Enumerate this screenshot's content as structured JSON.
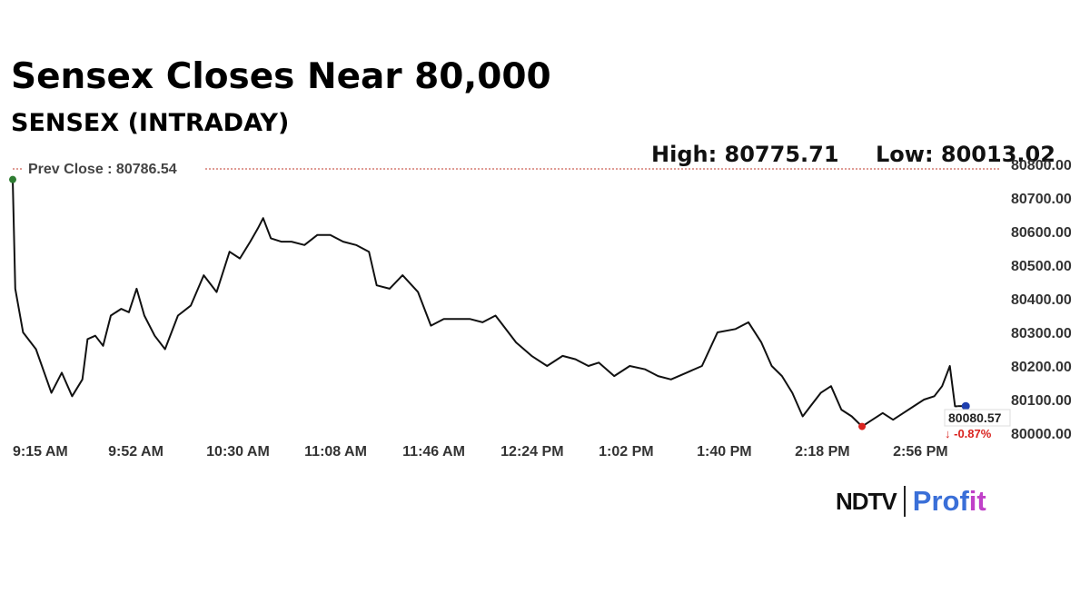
{
  "header": {
    "title": "Sensex Closes Near 80,000",
    "subtitle": "SENSEX (INTRADAY)",
    "high_text": "High: 80775.71",
    "low_text": "Low: 80013.02"
  },
  "chart_data": {
    "type": "line",
    "title": "SENSEX (INTRADAY)",
    "xlabel": "",
    "ylabel": "",
    "ylim": [
      80000,
      80800
    ],
    "yticks": [
      80000,
      80100,
      80200,
      80300,
      80400,
      80500,
      80600,
      80700,
      80800
    ],
    "ytick_labels": [
      "80000.00",
      "80100.00",
      "80200.00",
      "80300.00",
      "80400.00",
      "80500.00",
      "80600.00",
      "80700.00",
      "80800.00"
    ],
    "xticks": [
      "9:15 AM",
      "9:52 AM",
      "10:30 AM",
      "11:08 AM",
      "11:46 AM",
      "12:24 PM",
      "1:02 PM",
      "1:40 PM",
      "2:18 PM",
      "2:56 PM"
    ],
    "prev_close": {
      "label": "Prev Close : 80786.54",
      "value": 80786.54
    },
    "high": 80775.71,
    "low": 80013.02,
    "last": {
      "value_label": "80080.57",
      "change_label": "↓ -0.87%",
      "value": 80080.57
    },
    "grid": false,
    "series": [
      {
        "x": [
          "9:15 AM",
          "9:16 AM",
          "9:19 AM",
          "9:24 AM",
          "9:30 AM",
          "9:34 AM",
          "9:38 AM",
          "9:42 AM",
          "9:44 AM",
          "9:47 AM",
          "9:50 AM",
          "9:53 AM",
          "9:57 AM",
          "10:00 AM",
          "10:03 AM",
          "10:06 AM",
          "10:10 AM",
          "10:14 AM",
          "10:19 AM",
          "10:24 AM",
          "10:29 AM",
          "10:34 AM",
          "10:39 AM",
          "10:43 AM",
          "10:47 AM",
          "10:50 AM",
          "10:52 AM",
          "10:55 AM",
          "10:59 AM",
          "11:03 AM",
          "11:08 AM",
          "11:13 AM",
          "11:18 AM",
          "11:23 AM",
          "11:28 AM",
          "11:33 AM",
          "11:36 AM",
          "11:41 AM",
          "11:46 AM",
          "11:52 AM",
          "11:57 AM",
          "12:02 PM",
          "12:07 PM",
          "12:12 PM",
          "12:17 PM",
          "12:22 PM",
          "12:24 PM",
          "12:30 PM",
          "12:36 PM",
          "12:42 PM",
          "12:48 PM",
          "12:53 PM",
          "12:58 PM",
          "1:02 PM",
          "1:08 PM",
          "1:14 PM",
          "1:20 PM",
          "1:25 PM",
          "1:30 PM",
          "1:36 PM",
          "1:42 PM",
          "1:48 PM",
          "1:55 PM",
          "2:00 PM",
          "2:05 PM",
          "2:09 PM",
          "2:13 PM",
          "2:17 PM",
          "2:21 PM",
          "2:24 PM",
          "2:28 PM",
          "2:32 PM",
          "2:36 PM",
          "2:40 PM",
          "2:44 PM",
          "2:48 PM",
          "2:52 PM",
          "2:56 PM",
          "3:00 PM",
          "3:04 PM",
          "3:08 PM",
          "3:12 PM",
          "3:15 PM",
          "3:18 PM",
          "3:20 PM",
          "3:21 PM"
        ],
        "values": [
          80755,
          80430,
          80300,
          80250,
          80120,
          80180,
          80110,
          80160,
          80280,
          80290,
          80260,
          80350,
          80370,
          80360,
          80430,
          80350,
          80290,
          80250,
          80350,
          80380,
          80470,
          80420,
          80540,
          80520,
          80570,
          80610,
          80640,
          80580,
          80570,
          80570,
          80560,
          80590,
          80590,
          80570,
          80560,
          80540,
          80440,
          80430,
          80470,
          80420,
          80320,
          80340,
          80340,
          80340,
          80330,
          80350,
          80330,
          80270,
          80230,
          80200,
          80230,
          80220,
          80200,
          80210,
          80170,
          80200,
          80190,
          80170,
          80160,
          80180,
          80200,
          80300,
          80310,
          80330,
          80270,
          80200,
          80170,
          80120,
          80050,
          80080,
          80120,
          80140,
          80070,
          80050,
          80020,
          80040,
          80060,
          80040,
          80060,
          80080,
          80100,
          80110,
          80140,
          80200,
          80080,
          80080
        ]
      }
    ]
  },
  "brand": {
    "ndtv": "NDTV",
    "profit": "Prof",
    "profit_it": "it"
  },
  "colors": {
    "line": "#111111",
    "prev_close_line": "#c0392b",
    "start_dot": "#2e7d32",
    "end_dot": "#1f3fae",
    "low_dot": "#d9231f",
    "change_text": "#d9231f",
    "profit_blue": "#3a6fd8",
    "profit_magenta": "#c040c8"
  }
}
